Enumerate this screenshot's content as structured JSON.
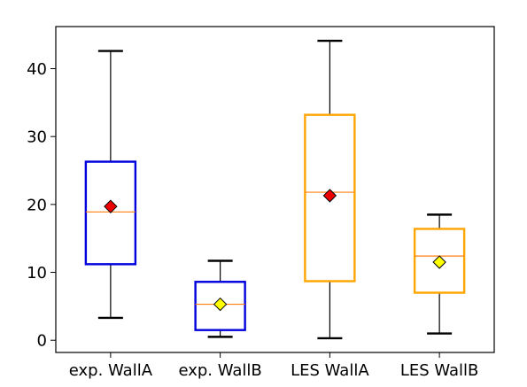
{
  "chart_data": {
    "type": "box",
    "title": "",
    "xlabel": "",
    "ylabel": "",
    "ylim": [
      -1.8,
      46.2
    ],
    "yticks": [
      0,
      10,
      20,
      30,
      40
    ],
    "grid": false,
    "categories": [
      "exp. WallA",
      "exp. WallB",
      "LES WallA",
      "LES WallB"
    ],
    "boxes": [
      {
        "label": "exp. WallA",
        "whisker_low": 3.3,
        "q1": 11.2,
        "median": 18.9,
        "q3": 26.3,
        "whisker_high": 42.6,
        "mean": 19.7,
        "box_color": "#0000dd",
        "mean_color": "#ee0000"
      },
      {
        "label": "exp. WallB",
        "whisker_low": 0.5,
        "q1": 1.5,
        "median": 5.3,
        "q3": 8.6,
        "whisker_high": 11.7,
        "mean": 5.3,
        "box_color": "#0000dd",
        "mean_color": "#ffff00"
      },
      {
        "label": "LES WallA",
        "whisker_low": 0.3,
        "q1": 8.7,
        "median": 21.8,
        "q3": 33.2,
        "whisker_high": 44.1,
        "mean": 21.3,
        "box_color": "#ffa500",
        "mean_color": "#ee0000"
      },
      {
        "label": "LES WallB",
        "whisker_low": 1.0,
        "q1": 7.0,
        "median": 12.4,
        "q3": 16.4,
        "whisker_high": 18.5,
        "mean": 11.5,
        "box_color": "#ffa500",
        "mean_color": "#ffff00"
      }
    ],
    "median_color": "#ff7f0e"
  }
}
